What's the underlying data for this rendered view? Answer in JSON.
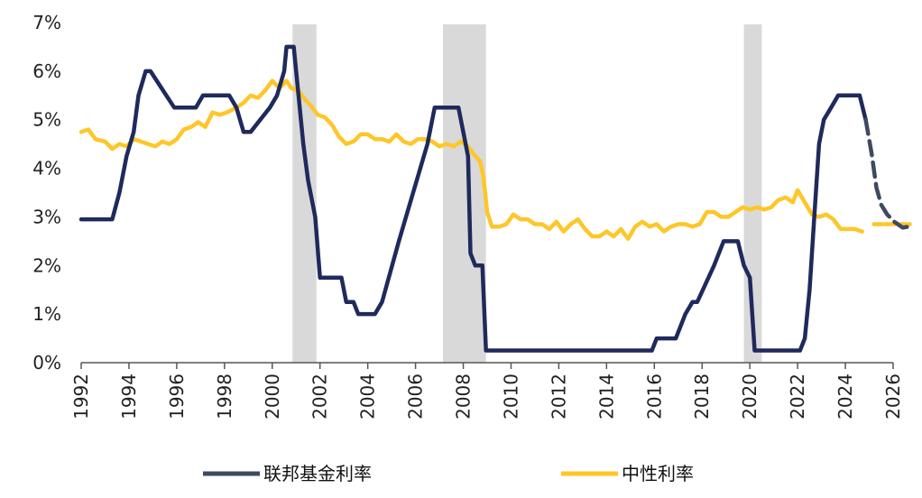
{
  "chart_data": {
    "type": "line",
    "title": "",
    "xlabel": "",
    "ylabel": "",
    "xlim": [
      1992,
      2026
    ],
    "ylim": [
      0,
      7
    ],
    "y_tick_format": "percent",
    "x_ticks": [
      "1992",
      "1994",
      "1996",
      "1998",
      "2000",
      "2002",
      "2004",
      "2006",
      "2008",
      "2010",
      "2012",
      "2014",
      "2016",
      "2018",
      "2020",
      "2022",
      "2024",
      "2026"
    ],
    "y_ticks": [
      "0%",
      "1%",
      "2%",
      "3%",
      "4%",
      "5%",
      "6%",
      "7%"
    ],
    "grid": false,
    "legend_position": "bottom",
    "recessions": [
      [
        2000.85,
        2001.85
      ],
      [
        2007.15,
        2008.95
      ],
      [
        2019.75,
        2020.5
      ]
    ],
    "series": [
      {
        "name": "联邦基金利率",
        "color": "#1f2a5c",
        "projection_color": "#3d4a60",
        "data": [
          [
            1992,
            2.95
          ],
          [
            1993.3,
            2.95
          ],
          [
            1993.6,
            3.5
          ],
          [
            1993.9,
            4.25
          ],
          [
            1994.2,
            4.75
          ],
          [
            1994.4,
            5.5
          ],
          [
            1994.7,
            6.0
          ],
          [
            1994.9,
            6.0
          ],
          [
            1995.5,
            5.55
          ],
          [
            1995.9,
            5.25
          ],
          [
            1996.8,
            5.25
          ],
          [
            1997.1,
            5.5
          ],
          [
            1998.2,
            5.5
          ],
          [
            1998.5,
            5.25
          ],
          [
            1998.8,
            4.75
          ],
          [
            1999.1,
            4.75
          ],
          [
            1999.5,
            5.0
          ],
          [
            1999.9,
            5.25
          ],
          [
            2000.2,
            5.5
          ],
          [
            2000.5,
            6.0
          ],
          [
            2000.6,
            6.5
          ],
          [
            2000.9,
            6.5
          ],
          [
            2001.1,
            5.5
          ],
          [
            2001.3,
            4.5
          ],
          [
            2001.5,
            3.75
          ],
          [
            2001.8,
            3.0
          ],
          [
            2002.0,
            1.75
          ],
          [
            2002.9,
            1.75
          ],
          [
            2003.1,
            1.25
          ],
          [
            2003.4,
            1.25
          ],
          [
            2003.6,
            1.0
          ],
          [
            2004.3,
            1.0
          ],
          [
            2004.6,
            1.25
          ],
          [
            2005.3,
            2.5
          ],
          [
            2006.5,
            4.5
          ],
          [
            2006.8,
            5.25
          ],
          [
            2007.8,
            5.25
          ],
          [
            2008.0,
            4.75
          ],
          [
            2008.2,
            4.25
          ],
          [
            2008.3,
            2.25
          ],
          [
            2008.5,
            2.0
          ],
          [
            2008.8,
            2.0
          ],
          [
            2008.95,
            0.25
          ],
          [
            2015.9,
            0.25
          ],
          [
            2016.1,
            0.5
          ],
          [
            2016.9,
            0.5
          ],
          [
            2017.3,
            1.0
          ],
          [
            2017.6,
            1.25
          ],
          [
            2017.8,
            1.25
          ],
          [
            2018.5,
            2.0
          ],
          [
            2018.9,
            2.5
          ],
          [
            2019.5,
            2.5
          ],
          [
            2019.75,
            2.0
          ],
          [
            2020.0,
            1.75
          ],
          [
            2020.2,
            0.25
          ],
          [
            2022.1,
            0.25
          ],
          [
            2022.3,
            0.5
          ],
          [
            2022.5,
            1.5
          ],
          [
            2022.7,
            3.0
          ],
          [
            2022.9,
            4.5
          ],
          [
            2023.1,
            5.0
          ],
          [
            2023.4,
            5.25
          ],
          [
            2023.7,
            5.5
          ],
          [
            2024.6,
            5.5
          ],
          [
            2024.85,
            5.0
          ]
        ],
        "projection": [
          [
            2024.85,
            5.0
          ],
          [
            2025.1,
            4.3
          ],
          [
            2025.3,
            3.6
          ],
          [
            2025.5,
            3.25
          ],
          [
            2025.75,
            3.05
          ],
          [
            2026.05,
            2.9
          ],
          [
            2026.4,
            2.78
          ],
          [
            2026.65,
            2.8
          ]
        ]
      },
      {
        "name": "中性利率",
        "color": "#ffc629",
        "data": [
          [
            1992,
            4.75
          ],
          [
            1992.3,
            4.8
          ],
          [
            1992.6,
            4.6
          ],
          [
            1993.0,
            4.55
          ],
          [
            1993.3,
            4.4
          ],
          [
            1993.6,
            4.5
          ],
          [
            1993.9,
            4.45
          ],
          [
            1994.2,
            4.6
          ],
          [
            1994.5,
            4.55
          ],
          [
            1994.8,
            4.5
          ],
          [
            1995.1,
            4.45
          ],
          [
            1995.4,
            4.55
          ],
          [
            1995.7,
            4.5
          ],
          [
            1996.0,
            4.6
          ],
          [
            1996.3,
            4.8
          ],
          [
            1996.6,
            4.85
          ],
          [
            1996.9,
            4.95
          ],
          [
            1997.2,
            4.85
          ],
          [
            1997.5,
            5.15
          ],
          [
            1997.8,
            5.1
          ],
          [
            1998.1,
            5.15
          ],
          [
            1998.5,
            5.25
          ],
          [
            1998.8,
            5.35
          ],
          [
            1999.1,
            5.5
          ],
          [
            1999.4,
            5.45
          ],
          [
            1999.7,
            5.6
          ],
          [
            2000.0,
            5.8
          ],
          [
            2000.3,
            5.65
          ],
          [
            2000.6,
            5.8
          ],
          [
            2000.8,
            5.65
          ],
          [
            2001.1,
            5.6
          ],
          [
            2001.4,
            5.4
          ],
          [
            2001.6,
            5.3
          ],
          [
            2001.9,
            5.1
          ],
          [
            2002.2,
            5.05
          ],
          [
            2002.5,
            4.9
          ],
          [
            2002.8,
            4.65
          ],
          [
            2003.1,
            4.5
          ],
          [
            2003.4,
            4.55
          ],
          [
            2003.7,
            4.7
          ],
          [
            2004.0,
            4.7
          ],
          [
            2004.3,
            4.6
          ],
          [
            2004.6,
            4.6
          ],
          [
            2004.9,
            4.55
          ],
          [
            2005.2,
            4.7
          ],
          [
            2005.5,
            4.55
          ],
          [
            2005.8,
            4.5
          ],
          [
            2006.1,
            4.6
          ],
          [
            2006.4,
            4.6
          ],
          [
            2006.7,
            4.55
          ],
          [
            2007.0,
            4.45
          ],
          [
            2007.3,
            4.5
          ],
          [
            2007.6,
            4.45
          ],
          [
            2007.9,
            4.55
          ],
          [
            2008.2,
            4.45
          ],
          [
            2008.5,
            4.25
          ],
          [
            2008.7,
            4.15
          ],
          [
            2008.85,
            3.8
          ],
          [
            2009.0,
            3.1
          ],
          [
            2009.2,
            2.8
          ],
          [
            2009.5,
            2.8
          ],
          [
            2009.8,
            2.85
          ],
          [
            2010.1,
            3.05
          ],
          [
            2010.4,
            2.95
          ],
          [
            2010.7,
            2.95
          ],
          [
            2011.0,
            2.85
          ],
          [
            2011.3,
            2.85
          ],
          [
            2011.6,
            2.75
          ],
          [
            2011.9,
            2.9
          ],
          [
            2012.2,
            2.7
          ],
          [
            2012.5,
            2.85
          ],
          [
            2012.8,
            2.95
          ],
          [
            2013.1,
            2.75
          ],
          [
            2013.4,
            2.6
          ],
          [
            2013.7,
            2.6
          ],
          [
            2014.0,
            2.7
          ],
          [
            2014.3,
            2.6
          ],
          [
            2014.6,
            2.75
          ],
          [
            2014.9,
            2.55
          ],
          [
            2015.2,
            2.8
          ],
          [
            2015.5,
            2.9
          ],
          [
            2015.8,
            2.8
          ],
          [
            2016.1,
            2.85
          ],
          [
            2016.4,
            2.7
          ],
          [
            2016.7,
            2.8
          ],
          [
            2017.0,
            2.85
          ],
          [
            2017.3,
            2.85
          ],
          [
            2017.6,
            2.8
          ],
          [
            2017.9,
            2.85
          ],
          [
            2018.2,
            3.1
          ],
          [
            2018.5,
            3.1
          ],
          [
            2018.8,
            3.0
          ],
          [
            2019.1,
            3.0
          ],
          [
            2019.4,
            3.1
          ],
          [
            2019.7,
            3.2
          ],
          [
            2020.0,
            3.15
          ],
          [
            2020.3,
            3.2
          ],
          [
            2020.6,
            3.15
          ],
          [
            2020.9,
            3.2
          ],
          [
            2021.2,
            3.35
          ],
          [
            2021.5,
            3.4
          ],
          [
            2021.8,
            3.3
          ],
          [
            2022.0,
            3.55
          ],
          [
            2022.3,
            3.3
          ],
          [
            2022.6,
            3.05
          ],
          [
            2022.9,
            3.0
          ],
          [
            2023.2,
            3.05
          ],
          [
            2023.5,
            2.95
          ],
          [
            2023.8,
            2.75
          ],
          [
            2024.1,
            2.75
          ],
          [
            2024.4,
            2.75
          ],
          [
            2024.7,
            2.7
          ]
        ],
        "projection": [
          [
            2025.2,
            2.85
          ],
          [
            2026.7,
            2.85
          ]
        ]
      }
    ]
  }
}
